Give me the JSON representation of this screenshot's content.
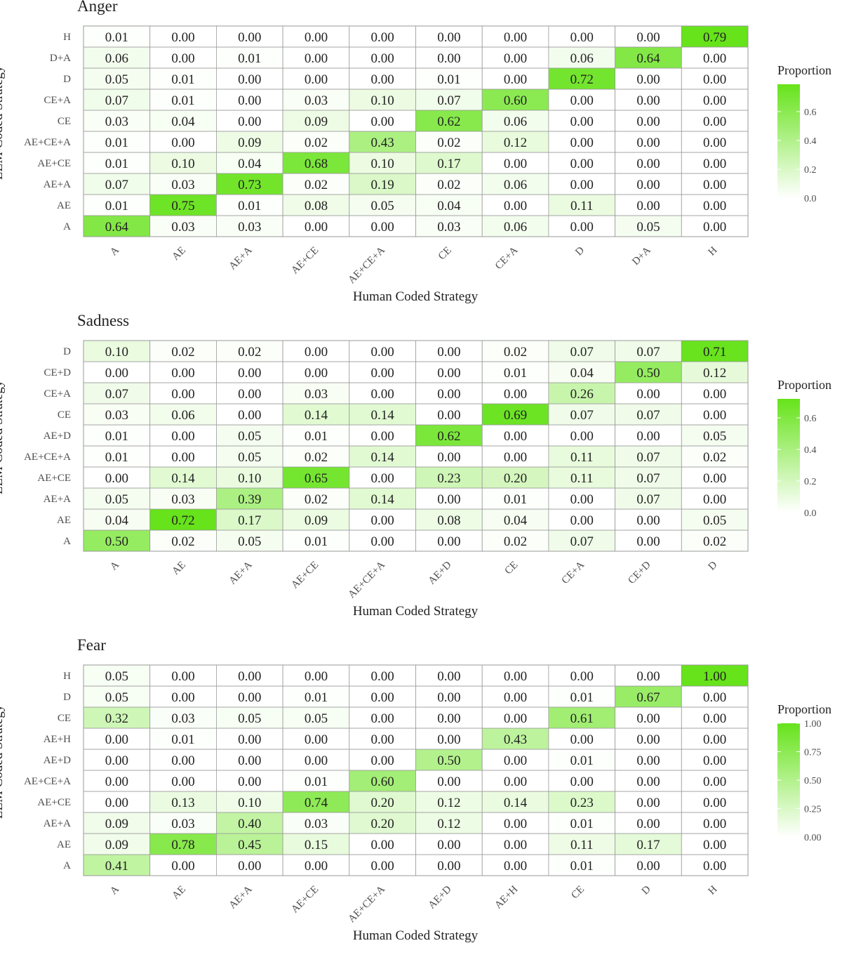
{
  "chart_data": [
    {
      "type": "heatmap",
      "title": "Anger",
      "xlabel": "Human Coded Strategy",
      "ylabel": "LLM Coded Strategy",
      "x_categories": [
        "A",
        "AE",
        "AE+A",
        "AE+CE",
        "AE+CE+A",
        "CE",
        "CE+A",
        "D",
        "D+A",
        "H"
      ],
      "y_categories": [
        "A",
        "AE",
        "AE+A",
        "AE+CE",
        "AE+CE+A",
        "CE",
        "CE+A",
        "D",
        "D+A",
        "H"
      ],
      "values": [
        [
          0.64,
          0.03,
          0.03,
          0.0,
          0.0,
          0.03,
          0.06,
          0.0,
          0.05,
          0.0
        ],
        [
          0.01,
          0.75,
          0.01,
          0.08,
          0.05,
          0.04,
          0.0,
          0.11,
          0.0,
          0.0
        ],
        [
          0.07,
          0.03,
          0.73,
          0.02,
          0.19,
          0.02,
          0.06,
          0.0,
          0.0,
          0.0
        ],
        [
          0.01,
          0.1,
          0.04,
          0.68,
          0.1,
          0.17,
          0.0,
          0.0,
          0.0,
          0.0
        ],
        [
          0.01,
          0.0,
          0.09,
          0.02,
          0.43,
          0.02,
          0.12,
          0.0,
          0.0,
          0.0
        ],
        [
          0.03,
          0.04,
          0.0,
          0.09,
          0.0,
          0.62,
          0.06,
          0.0,
          0.0,
          0.0
        ],
        [
          0.07,
          0.01,
          0.0,
          0.03,
          0.1,
          0.07,
          0.6,
          0.0,
          0.0,
          0.0
        ],
        [
          0.05,
          0.01,
          0.0,
          0.0,
          0.0,
          0.01,
          0.0,
          0.72,
          0.0,
          0.0
        ],
        [
          0.06,
          0.0,
          0.01,
          0.0,
          0.0,
          0.0,
          0.0,
          0.06,
          0.64,
          0.0
        ],
        [
          0.01,
          0.0,
          0.0,
          0.0,
          0.0,
          0.0,
          0.0,
          0.0,
          0.0,
          0.79
        ]
      ],
      "legend": {
        "title": "Proportion",
        "ticks": [
          "0.0",
          "0.2",
          "0.4",
          "0.6"
        ],
        "tick_values": [
          0,
          0.2,
          0.4,
          0.6
        ],
        "range": [
          0,
          0.79
        ]
      }
    },
    {
      "type": "heatmap",
      "title": "Sadness",
      "xlabel": "Human Coded Strategy",
      "ylabel": "LLM Coded Strategy",
      "x_categories": [
        "A",
        "AE",
        "AE+A",
        "AE+CE",
        "AE+CE+A",
        "AE+D",
        "CE",
        "CE+A",
        "CE+D",
        "D"
      ],
      "y_categories": [
        "A",
        "AE",
        "AE+A",
        "AE+CE",
        "AE+CE+A",
        "AE+D",
        "CE",
        "CE+A",
        "CE+D",
        "D"
      ],
      "values": [
        [
          0.5,
          0.02,
          0.05,
          0.01,
          0.0,
          0.0,
          0.02,
          0.07,
          0.0,
          0.02
        ],
        [
          0.04,
          0.72,
          0.17,
          0.09,
          0.0,
          0.08,
          0.04,
          0.0,
          0.0,
          0.05
        ],
        [
          0.05,
          0.03,
          0.39,
          0.02,
          0.14,
          0.0,
          0.01,
          0.0,
          0.07,
          0.0
        ],
        [
          0.0,
          0.14,
          0.1,
          0.65,
          0.0,
          0.23,
          0.2,
          0.11,
          0.07,
          0.0
        ],
        [
          0.01,
          0.0,
          0.05,
          0.02,
          0.14,
          0.0,
          0.0,
          0.11,
          0.07,
          0.02
        ],
        [
          0.01,
          0.0,
          0.05,
          0.01,
          0.0,
          0.62,
          0.0,
          0.0,
          0.0,
          0.05
        ],
        [
          0.03,
          0.06,
          0.0,
          0.14,
          0.14,
          0.0,
          0.69,
          0.07,
          0.07,
          0.0
        ],
        [
          0.07,
          0.0,
          0.0,
          0.03,
          0.0,
          0.0,
          0.0,
          0.26,
          0.0,
          0.0
        ],
        [
          0.0,
          0.0,
          0.0,
          0.0,
          0.0,
          0.0,
          0.01,
          0.04,
          0.5,
          0.12
        ],
        [
          0.1,
          0.02,
          0.02,
          0.0,
          0.0,
          0.0,
          0.02,
          0.07,
          0.07,
          0.71
        ]
      ],
      "legend": {
        "title": "Proportion",
        "ticks": [
          "0.0",
          "0.2",
          "0.4",
          "0.6"
        ],
        "tick_values": [
          0,
          0.2,
          0.4,
          0.6
        ],
        "range": [
          0,
          0.72
        ]
      }
    },
    {
      "type": "heatmap",
      "title": "Fear",
      "xlabel": "Human Coded Strategy",
      "ylabel": "LLM Coded Strategy",
      "x_categories": [
        "A",
        "AE",
        "AE+A",
        "AE+CE",
        "AE+CE+A",
        "AE+D",
        "AE+H",
        "CE",
        "D",
        "H"
      ],
      "y_categories": [
        "A",
        "AE",
        "AE+A",
        "AE+CE",
        "AE+CE+A",
        "AE+D",
        "AE+H",
        "CE",
        "D",
        "H"
      ],
      "values": [
        [
          0.41,
          0.0,
          0.0,
          0.0,
          0.0,
          0.0,
          0.0,
          0.01,
          0.0,
          0.0
        ],
        [
          0.09,
          0.78,
          0.45,
          0.15,
          0.0,
          0.0,
          0.0,
          0.11,
          0.17,
          0.0
        ],
        [
          0.09,
          0.03,
          0.4,
          0.03,
          0.2,
          0.12,
          0.0,
          0.01,
          0.0,
          0.0
        ],
        [
          0.0,
          0.13,
          0.1,
          0.74,
          0.2,
          0.12,
          0.14,
          0.23,
          0.0,
          0.0
        ],
        [
          0.0,
          0.0,
          0.0,
          0.01,
          0.6,
          0.0,
          0.0,
          0.0,
          0.0,
          0.0
        ],
        [
          0.0,
          0.0,
          0.0,
          0.0,
          0.0,
          0.5,
          0.0,
          0.01,
          0.0,
          0.0
        ],
        [
          0.0,
          0.01,
          0.0,
          0.0,
          0.0,
          0.0,
          0.43,
          0.0,
          0.0,
          0.0
        ],
        [
          0.32,
          0.03,
          0.05,
          0.05,
          0.0,
          0.0,
          0.0,
          0.61,
          0.0,
          0.0
        ],
        [
          0.05,
          0.0,
          0.0,
          0.01,
          0.0,
          0.0,
          0.0,
          0.01,
          0.67,
          0.0
        ],
        [
          0.05,
          0.0,
          0.0,
          0.0,
          0.0,
          0.0,
          0.0,
          0.0,
          0.0,
          1.0
        ]
      ],
      "legend": {
        "title": "Proportion",
        "ticks": [
          "0.00",
          "0.25",
          "0.50",
          "0.75",
          "1.00"
        ],
        "tick_values": [
          0,
          0.25,
          0.5,
          0.75,
          1.0
        ],
        "range": [
          0,
          1.0
        ]
      }
    }
  ],
  "colors": {
    "low": "#ffffff",
    "high": "#66e31a",
    "grid": "#9a9a9a",
    "text": "#222222",
    "axis_text": "#4d4d4d"
  }
}
